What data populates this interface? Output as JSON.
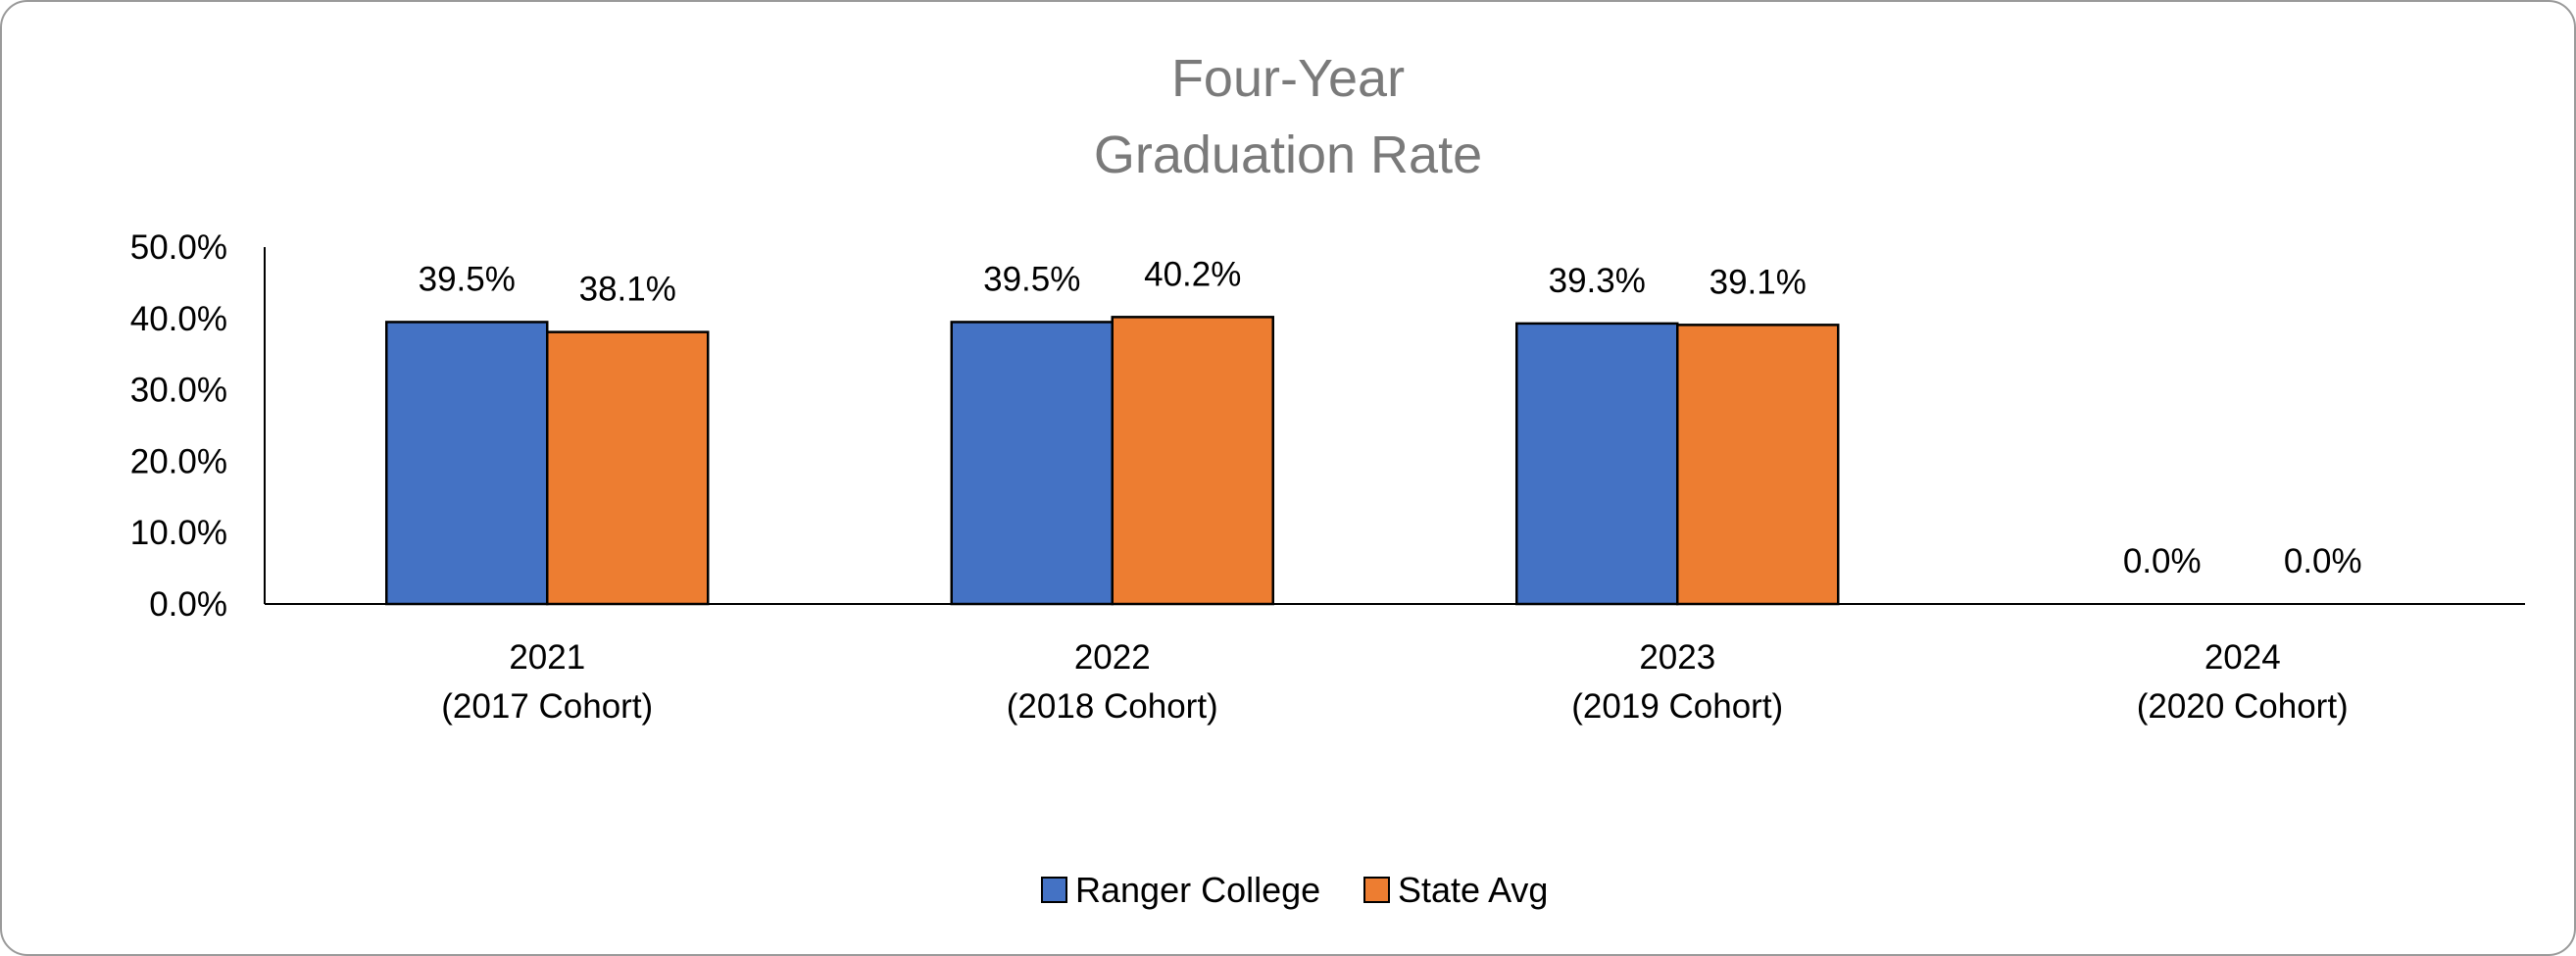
{
  "chart_data": {
    "type": "bar",
    "title_lines": [
      "Four-Year",
      "Graduation Rate"
    ],
    "categories": [
      [
        "2021",
        "(2017 Cohort)"
      ],
      [
        "2022",
        "(2018 Cohort)"
      ],
      [
        "2023",
        "(2019 Cohort)"
      ],
      [
        "2024",
        "(2020 Cohort)"
      ]
    ],
    "series": [
      {
        "name": "Ranger College",
        "color": "#4472C4",
        "values": [
          39.5,
          39.5,
          39.3,
          0.0
        ],
        "labels": [
          "39.5%",
          "39.5%",
          "39.3%",
          "0.0%"
        ]
      },
      {
        "name": "State Avg",
        "color": "#ED7D31",
        "values": [
          38.1,
          40.2,
          39.1,
          0.0
        ],
        "labels": [
          "38.1%",
          "40.2%",
          "39.1%",
          "0.0%"
        ]
      }
    ],
    "ylim": [
      0,
      50
    ],
    "yticks": [
      "0.0%",
      "10.0%",
      "20.0%",
      "30.0%",
      "40.0%",
      "50.0%"
    ],
    "xlabel": "",
    "ylabel": "",
    "grid": false,
    "legend_position": "bottom"
  }
}
